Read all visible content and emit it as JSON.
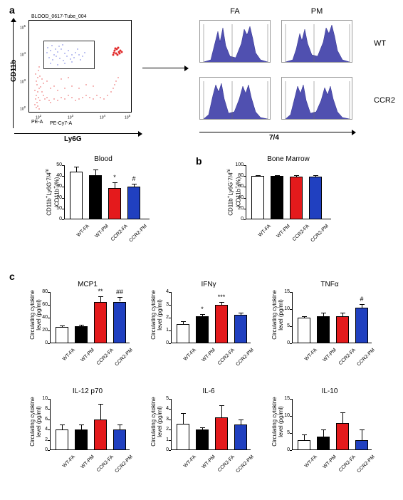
{
  "panel_labels": {
    "a": "a",
    "b": "b",
    "c": "c"
  },
  "colors": {
    "wt_fa": "#ffffff",
    "wt_pm": "#000000",
    "ccr2_fa": "#e41a1c",
    "ccr2_pm": "#2040c0",
    "histogram_fill": "#5050b0",
    "scatter_blue": "#2030d0",
    "scatter_red": "#e02020"
  },
  "scatter": {
    "file_label": "BLOOD_0617-Tube_004",
    "y_axis": "CD11b",
    "y_sub": "PE-A",
    "x_axis": "Ly6G",
    "x_sub": "PE-Cy7-A"
  },
  "histo": {
    "col_fa": "FA",
    "col_pm": "PM",
    "row_wt": "WT",
    "row_ccr2": "CCR2",
    "x_axis": "7/4"
  },
  "bar_groups": [
    "WT-FA",
    "WT-PM",
    "CCR2-FA",
    "CCR2-PM"
  ],
  "blood": {
    "title": "Blood",
    "yaxis": "CD11b⁺Ly6G⁻7/4ʰⁱ\n/CD11b⁺(%)",
    "ylim": 50,
    "yticks": [
      0,
      10,
      20,
      30,
      40,
      50
    ],
    "values": [
      44,
      41,
      29,
      30
    ],
    "errors": [
      5,
      5,
      5,
      3
    ],
    "sig": [
      "",
      "",
      "*",
      "#"
    ]
  },
  "bone": {
    "title": "Bone Marrow",
    "yaxis": "CD11b⁺Ly6G⁻7/4ʰⁱ\n/CD11b⁺(%)",
    "ylim": 100,
    "yticks": [
      0,
      20,
      40,
      60,
      80,
      100
    ],
    "values": [
      80,
      80,
      79,
      79
    ],
    "errors": [
      2,
      2,
      2,
      2
    ],
    "sig": [
      "",
      "",
      "",
      ""
    ]
  },
  "cytokines": [
    {
      "title": "MCP1",
      "ylim": 80,
      "yticks": [
        0,
        20,
        40,
        60,
        80
      ],
      "values": [
        26,
        27,
        64,
        65
      ],
      "errors": [
        2,
        2,
        9,
        7
      ],
      "sig": [
        "",
        "",
        "**",
        "##"
      ]
    },
    {
      "title": "IFNγ",
      "ylim": 4,
      "yticks": [
        0,
        1,
        2,
        3,
        4
      ],
      "values": [
        1.5,
        2.1,
        3.0,
        2.2
      ],
      "errors": [
        0.2,
        0.2,
        0.2,
        0.2
      ],
      "sig": [
        "",
        "*",
        "***",
        ""
      ]
    },
    {
      "title": "TNFα",
      "ylim": 15,
      "yticks": [
        0,
        5,
        10,
        15
      ],
      "values": [
        7.5,
        8,
        8,
        10.5
      ],
      "errors": [
        0.5,
        1,
        1,
        1
      ],
      "sig": [
        "",
        "",
        "",
        "#"
      ]
    },
    {
      "title": "IL-12 p70",
      "ylim": 10,
      "yticks": [
        0,
        2,
        4,
        6,
        8,
        10
      ],
      "values": [
        4,
        4,
        6,
        4
      ],
      "errors": [
        1,
        1,
        3,
        1
      ],
      "sig": [
        "",
        "",
        "",
        ""
      ]
    },
    {
      "title": "IL-6",
      "ylim": 5,
      "yticks": [
        0,
        1,
        2,
        3,
        4,
        5
      ],
      "values": [
        2.6,
        2.0,
        3.2,
        2.5
      ],
      "errors": [
        1.0,
        0.2,
        1.2,
        0.5
      ],
      "sig": [
        "",
        "",
        "",
        ""
      ]
    },
    {
      "title": "IL-10",
      "ylim": 15,
      "yticks": [
        0,
        5,
        10,
        15
      ],
      "values": [
        3,
        4,
        8,
        3
      ],
      "errors": [
        1.5,
        2,
        3,
        3
      ],
      "sig": [
        "",
        "",
        "",
        ""
      ]
    }
  ],
  "cytokine_yaxis": "Circulating cytokine\nlevel (pg/ml)"
}
